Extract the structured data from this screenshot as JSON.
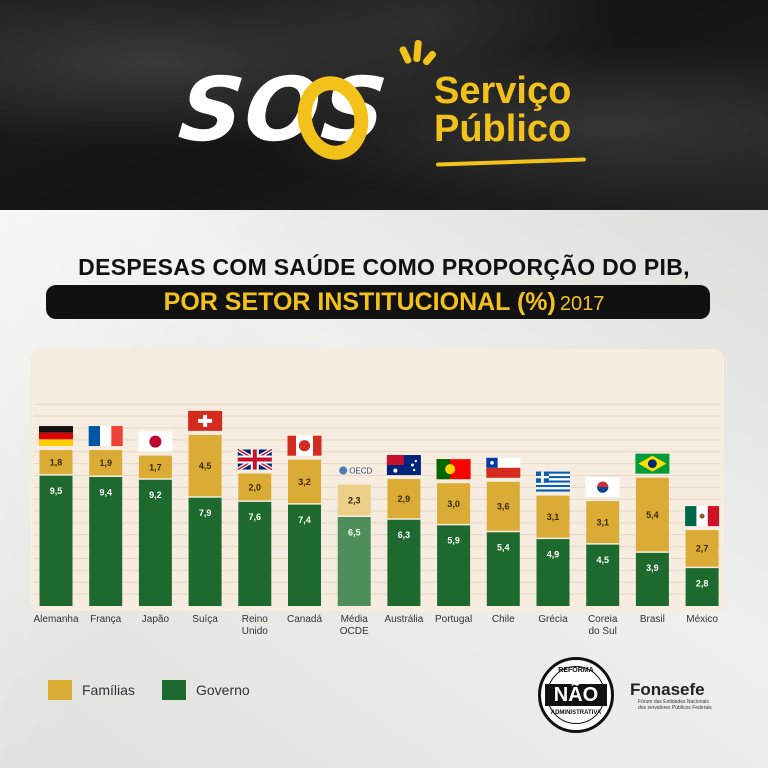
{
  "header": {
    "sos": "SOS",
    "servico": "Serviço",
    "publico": "Público"
  },
  "title_line1": "DESPESAS COM SAÚDE COMO PROPORÇÃO DO PIB,",
  "title_line2": "POR SETOR INSTITUCIONAL (%)",
  "title_year": "2017",
  "colors": {
    "familias": "#dbac35",
    "governo": "#1e6a2e",
    "media_familias": "#ecd08a",
    "media_governo": "#4e8e5a",
    "accent": "#f2c21b"
  },
  "chart_data": {
    "type": "bar",
    "stacked": true,
    "categories": [
      "Alemanha",
      "França",
      "Japão",
      "Suíça",
      "Reino Unido",
      "Canadá",
      "Média OCDE",
      "Austrália",
      "Portugal",
      "Chile",
      "Grécia",
      "Coreia do Sul",
      "Brasil",
      "México"
    ],
    "category_lines": [
      [
        "Alemanha"
      ],
      [
        "França"
      ],
      [
        "Japão"
      ],
      [
        "Suíça"
      ],
      [
        "Reino",
        "Unido"
      ],
      [
        "Canadá"
      ],
      [
        "Média",
        "OCDE"
      ],
      [
        "Austrália"
      ],
      [
        "Portugal"
      ],
      [
        "Chile"
      ],
      [
        "Grécia"
      ],
      [
        "Coreia",
        "do Sul"
      ],
      [
        "Brasil"
      ],
      [
        "México"
      ]
    ],
    "series": [
      {
        "name": "Governo",
        "values": [
          9.5,
          9.4,
          9.2,
          7.9,
          7.6,
          7.4,
          6.5,
          6.3,
          5.9,
          5.4,
          4.9,
          4.5,
          3.9,
          2.8
        ]
      },
      {
        "name": "Famílias",
        "values": [
          1.8,
          1.9,
          1.7,
          4.5,
          2.0,
          3.2,
          2.3,
          2.9,
          3.0,
          3.6,
          3.1,
          3.1,
          5.4,
          2.7
        ]
      }
    ],
    "value_labels": {
      "governo": [
        "9,5",
        "9,4",
        "9,2",
        "7,9",
        "7,6",
        "7,4",
        "6,5",
        "6,3",
        "5,9",
        "5,4",
        "4,9",
        "4,5",
        "3,9",
        "2,8"
      ],
      "familias": [
        "1,8",
        "1,9",
        "1,7",
        "4,5",
        "2,0",
        "3,2",
        "2,3",
        "2,9",
        "3,0",
        "3,6",
        "3,1",
        "3,1",
        "5,4",
        "2,7"
      ]
    },
    "flags": [
      "germany-flag",
      "france-flag",
      "japan-flag",
      "switzerland-flag",
      "uk-flag",
      "canada-flag",
      "oecd-logo",
      "australia-flag",
      "portugal-flag",
      "chile-flag",
      "greece-flag",
      "south-korea-flag",
      "brazil-flag",
      "mexico-flag"
    ],
    "oecd_label": "OECD",
    "ylim": [
      0,
      14
    ],
    "grid": true,
    "legend_position": "bottom-left"
  },
  "legend": {
    "familias": "Famílias",
    "governo": "Governo"
  },
  "stamp": {
    "top": "REFORMA",
    "main": "NÃO",
    "bottom": "ADMINISTRATIVA"
  },
  "brand": {
    "name": "Fonasefe",
    "subtitle": "Fórum das Entidades Nacionais dos servidores Públicos Federais"
  }
}
